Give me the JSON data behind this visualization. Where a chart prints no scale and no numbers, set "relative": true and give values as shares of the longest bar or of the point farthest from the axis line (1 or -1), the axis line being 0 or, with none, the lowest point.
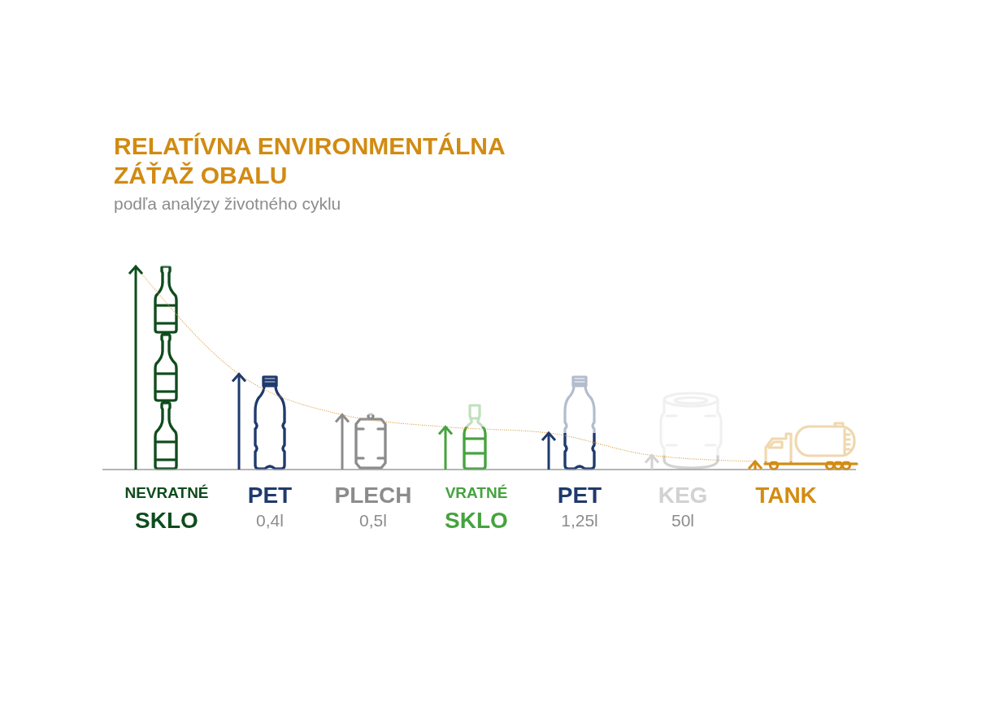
{
  "chart_data": {
    "type": "bar",
    "title": "RELATÍVNA ENVIRONMENTÁLNA ZÁŤAŽ OBALU",
    "subtitle": "podľa analýzy životného cyklu",
    "categories": [
      "NEVRATNÉ\nSKLO",
      "PET\n0,4l",
      "PLECH\n0,5l",
      "VRATNÉ\nSKLO",
      "PET\n1,25l",
      "KEG\n50l",
      "TANK"
    ],
    "relative": true,
    "series": [
      {
        "type": "bar",
        "values": [
          1,
          0.47,
          0.27,
          0.21,
          0.18,
          0.07,
          0.04
        ],
        "colors": [
          "#0f4c1d",
          "#1f3a6d",
          "#8c8c8c",
          "#45a33e",
          "#1f3a6d",
          "#d2d2d2",
          "#d38c12"
        ]
      },
      {
        "type": "line",
        "values": [
          1,
          0.47,
          0.27,
          0.21,
          0.18,
          0.07,
          0.04
        ],
        "color": "#d9a14c",
        "line_style": "dotted"
      }
    ]
  }
}
